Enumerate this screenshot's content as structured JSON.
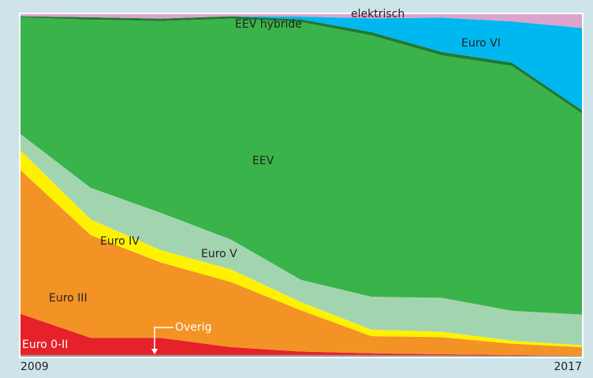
{
  "chart_data": {
    "type": "stacked_area",
    "categories": [
      "2009",
      null,
      null,
      null,
      null,
      null,
      null,
      null,
      "2017"
    ],
    "ylim": [
      0,
      100
    ],
    "series": [
      {
        "name": "Overig",
        "color": "#9a9a9a",
        "values": [
          0.5,
          0.5,
          0.5,
          0.5,
          0.5,
          0.5,
          0.4,
          0.3,
          0.3
        ]
      },
      {
        "name": "Euro 0-II",
        "color": "#e62129",
        "values": [
          12,
          5,
          5,
          2.3,
          1,
          0.5,
          0.3,
          0.2,
          0
        ]
      },
      {
        "name": "Euro III",
        "color": "#f39325",
        "values": [
          42,
          30,
          22,
          19,
          12,
          5,
          5,
          3.3,
          2.5
        ]
      },
      {
        "name": "Euro IV",
        "color": "#fff200",
        "values": [
          5.7,
          4.6,
          3.6,
          3.7,
          2.4,
          1.9,
          1.6,
          0.9,
          0.5
        ]
      },
      {
        "name": "Euro V",
        "color": "#a3d4b0",
        "values": [
          4.8,
          9.2,
          10.9,
          8.7,
          6.5,
          9.6,
          9.9,
          8.7,
          9
        ]
      },
      {
        "name": "EEV",
        "color": "#3ab34a",
        "values": [
          34.1,
          49.1,
          56,
          64.5,
          75.3,
          76.3,
          70.8,
          71.5,
          58.7
        ]
      },
      {
        "name": "EEV hybride",
        "color": "#1f7a32",
        "values": [
          0.3,
          0.7,
          0.7,
          0.7,
          0.8,
          1,
          1,
          1,
          1
        ]
      },
      {
        "name": "Euro VI",
        "color": "#00b8f0",
        "values": [
          0,
          0,
          0,
          0,
          0.8,
          4,
          10,
          12,
          24
        ]
      },
      {
        "name": "elektrisch",
        "color": "#dca3cc",
        "values": [
          0.6,
          0.9,
          1.3,
          0.6,
          0.7,
          1.2,
          1,
          2.1,
          4
        ]
      }
    ]
  }
}
